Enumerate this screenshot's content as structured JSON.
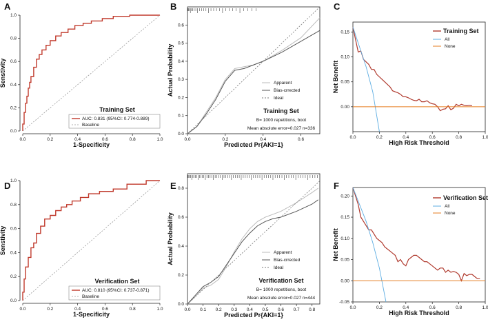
{
  "chart_data": [
    {
      "type": "line",
      "panel": "A",
      "title": "Training Set",
      "xlabel": "1-Specificity",
      "ylabel": "Senstivity",
      "xlim": [
        0,
        1
      ],
      "ylim": [
        0,
        1
      ],
      "xticks": [
        "0.0",
        "0.2",
        "0.4",
        "0.6",
        "0.8",
        "1.0"
      ],
      "yticks": [
        "0.0",
        "0.2",
        "0.4",
        "0.6",
        "0.8",
        "1.0"
      ],
      "series": [
        {
          "name": "AUC: 0.831 (95%CI: 0.774-0.889)",
          "color": "#c0392b",
          "x": [
            0,
            0,
            0.01,
            0.01,
            0.02,
            0.02,
            0.03,
            0.03,
            0.04,
            0.04,
            0.05,
            0.05,
            0.06,
            0.06,
            0.08,
            0.08,
            0.1,
            0.1,
            0.12,
            0.12,
            0.14,
            0.14,
            0.17,
            0.17,
            0.2,
            0.2,
            0.24,
            0.24,
            0.28,
            0.28,
            0.33,
            0.33,
            0.38,
            0.38,
            0.44,
            0.44,
            0.5,
            0.5,
            0.58,
            0.58,
            0.66,
            0.66,
            0.78,
            0.78,
            1.0
          ],
          "y": [
            0,
            0.06,
            0.06,
            0.16,
            0.16,
            0.24,
            0.24,
            0.3,
            0.3,
            0.37,
            0.37,
            0.42,
            0.42,
            0.47,
            0.47,
            0.55,
            0.55,
            0.62,
            0.62,
            0.66,
            0.66,
            0.7,
            0.7,
            0.74,
            0.74,
            0.78,
            0.78,
            0.82,
            0.82,
            0.85,
            0.85,
            0.88,
            0.88,
            0.91,
            0.91,
            0.93,
            0.93,
            0.95,
            0.95,
            0.97,
            0.97,
            0.99,
            0.99,
            1.0,
            1.0
          ]
        },
        {
          "name": "Baseline",
          "color": "#999999",
          "x": [
            0,
            1
          ],
          "y": [
            0,
            1
          ]
        }
      ]
    },
    {
      "type": "line",
      "panel": "B",
      "title": "Training Set",
      "annotations": [
        "B= 1000 repetitions, boot",
        "Mean absolute error=0.027 n=336"
      ],
      "xlabel": "Predicted Pr{AKI=1}",
      "ylabel": "Actual Probability",
      "xlim": [
        0,
        0.7
      ],
      "ylim": [
        0,
        0.7
      ],
      "xticks": [
        "0.0",
        "0.2",
        "0.4",
        "0.6"
      ],
      "yticks": [
        "0.0",
        "0.1",
        "0.2",
        "0.3",
        "0.4",
        "0.5",
        "0.6"
      ],
      "series": [
        {
          "name": "Apparent",
          "color": "#bbbbbb",
          "x": [
            0.0,
            0.05,
            0.1,
            0.15,
            0.2,
            0.25,
            0.3,
            0.35,
            0.4,
            0.5,
            0.6,
            0.7
          ],
          "y": [
            0.0,
            0.04,
            0.12,
            0.2,
            0.3,
            0.36,
            0.37,
            0.38,
            0.4,
            0.46,
            0.53,
            0.64
          ]
        },
        {
          "name": "Bias-crrected",
          "color": "#555555",
          "x": [
            0.0,
            0.05,
            0.1,
            0.15,
            0.2,
            0.25,
            0.3,
            0.35,
            0.4,
            0.5,
            0.6,
            0.7
          ],
          "y": [
            0.0,
            0.04,
            0.11,
            0.19,
            0.29,
            0.35,
            0.36,
            0.38,
            0.4,
            0.45,
            0.51,
            0.57
          ]
        },
        {
          "name": "Ideal",
          "color": "#777777",
          "x": [
            0,
            0.7
          ],
          "y": [
            0,
            0.7
          ]
        }
      ]
    },
    {
      "type": "line",
      "panel": "C",
      "title": "Training Set",
      "xlabel": "High Risk Threshold",
      "ylabel": "Net Benefit",
      "xlim": [
        0,
        1.0
      ],
      "ylim": [
        -0.05,
        0.17
      ],
      "xticks": [
        "0.0",
        "0.2",
        "0.4",
        "0.6",
        "0.8",
        "1.0"
      ],
      "yticks": [
        "0.00",
        "0.05",
        "0.10",
        "0.15"
      ],
      "series": [
        {
          "name": "Training Set",
          "color": "#b03a2e",
          "x": [
            0.0,
            0.02,
            0.04,
            0.06,
            0.08,
            0.1,
            0.12,
            0.14,
            0.16,
            0.18,
            0.2,
            0.22,
            0.24,
            0.26,
            0.28,
            0.3,
            0.32,
            0.34,
            0.36,
            0.38,
            0.4,
            0.42,
            0.44,
            0.46,
            0.48,
            0.5,
            0.52,
            0.54,
            0.56,
            0.58,
            0.6,
            0.62,
            0.64,
            0.66,
            0.68,
            0.7,
            0.72,
            0.74,
            0.76,
            0.78,
            0.8,
            0.82,
            0.84,
            0.86,
            0.88,
            0.9
          ],
          "y": [
            0.16,
            0.135,
            0.11,
            0.112,
            0.095,
            0.09,
            0.085,
            0.075,
            0.075,
            0.065,
            0.06,
            0.055,
            0.05,
            0.045,
            0.04,
            0.032,
            0.03,
            0.028,
            0.025,
            0.02,
            0.02,
            0.018,
            0.015,
            0.013,
            0.012,
            0.015,
            0.01,
            0.01,
            0.012,
            0.008,
            0.006,
            0.005,
            0.0,
            -0.008,
            -0.005,
            -0.004,
            0.002,
            -0.006,
            -0.003,
            0.005,
            0.002,
            0.005,
            0.003,
            0.002,
            0.003,
            0.002
          ]
        },
        {
          "name": "All",
          "color": "#5dade2",
          "x": [
            0.0,
            0.05,
            0.1,
            0.15,
            0.2
          ],
          "y": [
            0.16,
            0.12,
            0.08,
            0.03,
            -0.05
          ]
        },
        {
          "name": "None",
          "color": "#e67e22",
          "x": [
            0,
            1
          ],
          "y": [
            0,
            0
          ]
        }
      ]
    },
    {
      "type": "line",
      "panel": "D",
      "title": "Verification Set",
      "xlabel": "1-Specificity",
      "ylabel": "Senstivity",
      "xlim": [
        0,
        1
      ],
      "ylim": [
        0,
        1
      ],
      "xticks": [
        "0.0",
        "0.2",
        "0.4",
        "0.6",
        "0.8",
        "1.0"
      ],
      "yticks": [
        "0.0",
        "0.2",
        "0.4",
        "0.6",
        "0.8",
        "1.0"
      ],
      "series": [
        {
          "name": "AUC: 0.810 (95%CI: 0.737-0.871)",
          "color": "#c0392b",
          "x": [
            0,
            0,
            0.01,
            0.01,
            0.02,
            0.02,
            0.04,
            0.04,
            0.06,
            0.06,
            0.08,
            0.08,
            0.1,
            0.1,
            0.13,
            0.13,
            0.16,
            0.16,
            0.2,
            0.2,
            0.24,
            0.24,
            0.28,
            0.28,
            0.32,
            0.32,
            0.36,
            0.36,
            0.42,
            0.42,
            0.48,
            0.48,
            0.56,
            0.56,
            0.66,
            0.66,
            0.76,
            0.76,
            0.9,
            0.9,
            1.0
          ],
          "y": [
            0,
            0.07,
            0.07,
            0.18,
            0.18,
            0.28,
            0.28,
            0.36,
            0.36,
            0.44,
            0.44,
            0.48,
            0.48,
            0.56,
            0.56,
            0.62,
            0.62,
            0.68,
            0.68,
            0.71,
            0.71,
            0.75,
            0.75,
            0.78,
            0.78,
            0.8,
            0.8,
            0.83,
            0.83,
            0.86,
            0.86,
            0.89,
            0.89,
            0.91,
            0.91,
            0.93,
            0.93,
            0.97,
            0.97,
            1.0,
            1.0
          ]
        },
        {
          "name": "Baseline",
          "color": "#999999",
          "x": [
            0,
            1
          ],
          "y": [
            0,
            1
          ]
        }
      ]
    },
    {
      "type": "line",
      "panel": "E",
      "title": "Verification Set",
      "annotations": [
        "B= 1000 repetitions, boot",
        "Mean absolute error=0.027 n=444"
      ],
      "xlabel": "Predicted Pr{AKI=1}",
      "ylabel": "Actual Probability",
      "xlim": [
        0,
        0.85
      ],
      "ylim": [
        0,
        0.9
      ],
      "xticks": [
        "0.0",
        "0.1",
        "0.2",
        "0.3",
        "0.4",
        "0.5",
        "0.6",
        "0.7",
        "0.8"
      ],
      "yticks": [
        "0.0",
        "0.2",
        "0.4",
        "0.6",
        "0.8"
      ],
      "series": [
        {
          "name": "Apparent",
          "color": "#bbbbbb",
          "x": [
            0.0,
            0.05,
            0.1,
            0.15,
            0.2,
            0.25,
            0.3,
            0.35,
            0.4,
            0.45,
            0.5,
            0.55,
            0.6,
            0.7,
            0.8,
            0.84
          ],
          "y": [
            0.0,
            0.05,
            0.11,
            0.13,
            0.17,
            0.26,
            0.36,
            0.45,
            0.52,
            0.57,
            0.6,
            0.62,
            0.64,
            0.7,
            0.77,
            0.8
          ]
        },
        {
          "name": "Bias-crrected",
          "color": "#555555",
          "x": [
            0.0,
            0.05,
            0.1,
            0.15,
            0.2,
            0.25,
            0.3,
            0.35,
            0.4,
            0.45,
            0.5,
            0.55,
            0.6,
            0.7,
            0.8,
            0.84
          ],
          "y": [
            0.0,
            0.06,
            0.12,
            0.15,
            0.19,
            0.27,
            0.35,
            0.43,
            0.49,
            0.54,
            0.57,
            0.59,
            0.6,
            0.64,
            0.69,
            0.72
          ]
        },
        {
          "name": "Ideal",
          "color": "#777777",
          "x": [
            0,
            0.85
          ],
          "y": [
            0,
            0.85
          ]
        }
      ]
    },
    {
      "type": "line",
      "panel": "F",
      "title": "Verification Set",
      "xlabel": "High Risk Threshold",
      "ylabel": "Net Benefit",
      "xlim": [
        0,
        1.0
      ],
      "ylim": [
        -0.05,
        0.22
      ],
      "xticks": [
        "0.0",
        "0.2",
        "0.4",
        "0.6",
        "0.8",
        "1.0"
      ],
      "yticks": [
        "-0.05",
        "0.00",
        "0.05",
        "0.10",
        "0.15",
        "0.20"
      ],
      "series": [
        {
          "name": "Verification Set",
          "color": "#b03a2e",
          "x": [
            0.0,
            0.02,
            0.04,
            0.06,
            0.08,
            0.1,
            0.12,
            0.14,
            0.16,
            0.18,
            0.2,
            0.22,
            0.24,
            0.26,
            0.28,
            0.3,
            0.32,
            0.34,
            0.36,
            0.38,
            0.4,
            0.42,
            0.44,
            0.46,
            0.48,
            0.5,
            0.52,
            0.54,
            0.56,
            0.58,
            0.6,
            0.62,
            0.64,
            0.66,
            0.68,
            0.7,
            0.72,
            0.74,
            0.76,
            0.78,
            0.8,
            0.82,
            0.84,
            0.86,
            0.88,
            0.9,
            0.92,
            0.94,
            0.96
          ],
          "y": [
            0.22,
            0.2,
            0.18,
            0.15,
            0.14,
            0.13,
            0.12,
            0.12,
            0.11,
            0.1,
            0.095,
            0.09,
            0.08,
            0.075,
            0.07,
            0.065,
            0.06,
            0.045,
            0.05,
            0.04,
            0.035,
            0.05,
            0.055,
            0.06,
            0.06,
            0.055,
            0.05,
            0.045,
            0.045,
            0.04,
            0.035,
            0.03,
            0.025,
            0.03,
            0.03,
            0.02,
            0.025,
            0.02,
            0.022,
            0.02,
            0.015,
            0.0,
            0.017,
            0.012,
            0.015,
            0.015,
            0.01,
            0.005,
            0.005
          ]
        },
        {
          "name": "All",
          "color": "#5dade2",
          "x": [
            0.0,
            0.05,
            0.1,
            0.15,
            0.2,
            0.25
          ],
          "y": [
            0.22,
            0.18,
            0.14,
            0.09,
            0.03,
            -0.05
          ]
        },
        {
          "name": "None",
          "color": "#e67e22",
          "x": [
            0,
            1
          ],
          "y": [
            0,
            0
          ]
        }
      ]
    }
  ]
}
